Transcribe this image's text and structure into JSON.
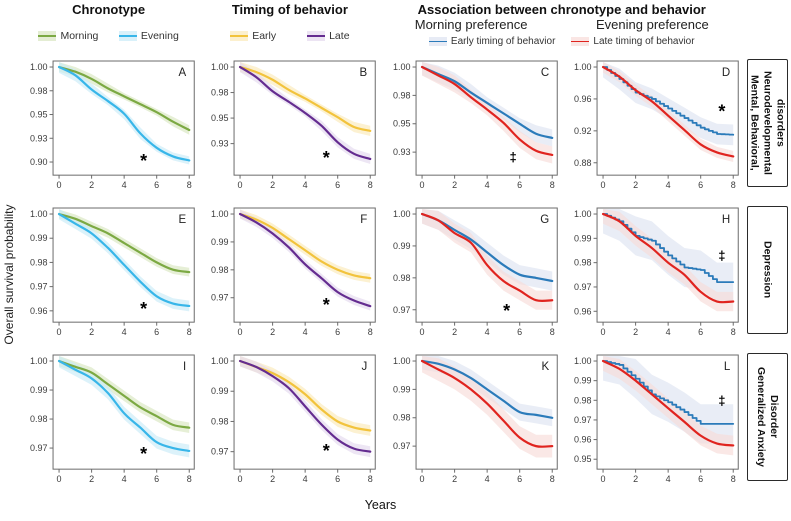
{
  "figure": {
    "ylabel": "Overall survival probability",
    "xlabel": "Years"
  },
  "header": {
    "chronotype": {
      "title": "Chronotype",
      "legend": [
        {
          "label": "Morning",
          "color": "#7ca943",
          "fill": "#d9e6c0"
        },
        {
          "label": "Evening",
          "color": "#38b6e9",
          "fill": "#c9ebf8"
        }
      ]
    },
    "timing": {
      "title": "Timing of behavior",
      "legend": [
        {
          "label": "Early",
          "color": "#f2c33c",
          "fill": "#fbeab9"
        },
        {
          "label": "Late",
          "color": "#642c90",
          "fill": "#e4d8ee"
        }
      ]
    },
    "association": {
      "title": "Association between chronotype  and behavior",
      "subcolumns": [
        {
          "label": "Morning preference"
        },
        {
          "label": "Evening preference"
        }
      ],
      "legend": [
        {
          "label": "Early timing of behavior",
          "color": "#2b7bba",
          "fill": "#dde3f1"
        },
        {
          "label": "Late timing of behavior",
          "color": "#e0241f",
          "fill": "#f8dbd8"
        }
      ]
    }
  },
  "rows": [
    {
      "label_text": "Mental, Behavioral,\nNeurodevelopmental\ndisorders"
    },
    {
      "label_text": "Depression"
    },
    {
      "label_text": "Generalized Anxiety\nDisorder"
    }
  ],
  "chart_data": [
    {
      "id": "A",
      "type": "line",
      "column": "Chronotype",
      "outcome": "Mental, Behavioral, Neurodevelopmental disorders",
      "x": [
        0,
        1,
        2,
        3,
        4,
        5,
        6,
        7,
        8
      ],
      "xticks": [
        0,
        2,
        4,
        6,
        8
      ],
      "yticks": [
        1.0,
        0.98,
        0.95,
        0.93,
        0.9
      ],
      "series": [
        {
          "name": "Morning",
          "color": "#7ca943",
          "fill": "#d9e6c0",
          "band": 0.004,
          "step": false,
          "values": [
            1.0,
            0.996,
            0.99,
            0.982,
            0.973,
            0.963,
            0.953,
            0.944,
            0.937
          ]
        },
        {
          "name": "Evening",
          "color": "#38b6e9",
          "fill": "#c9ebf8",
          "band": 0.005,
          "step": false,
          "values": [
            1.0,
            0.993,
            0.981,
            0.967,
            0.951,
            0.934,
            0.918,
            0.907,
            0.902
          ]
        }
      ],
      "significance": {
        "symbol": "*",
        "x": 5.2,
        "y": 0.905
      }
    },
    {
      "id": "B",
      "type": "line",
      "column": "Timing of behavior",
      "outcome": "Mental, Behavioral, Neurodevelopmental disorders",
      "x": [
        0,
        1,
        2,
        3,
        4,
        5,
        6,
        7,
        8
      ],
      "xticks": [
        0,
        2,
        4,
        6,
        8
      ],
      "yticks": [
        1.0,
        0.98,
        0.95,
        0.93
      ],
      "series": [
        {
          "name": "Early",
          "color": "#f2c33c",
          "fill": "#fbeab9",
          "band": 0.004,
          "step": false,
          "values": [
            1.0,
            0.996,
            0.99,
            0.982,
            0.973,
            0.962,
            0.951,
            0.943,
            0.94
          ]
        },
        {
          "name": "Late",
          "color": "#642c90",
          "fill": "#e4d8ee",
          "band": 0.004,
          "step": false,
          "values": [
            1.0,
            0.992,
            0.981,
            0.969,
            0.956,
            0.944,
            0.931,
            0.922,
            0.918
          ]
        }
      ],
      "significance": {
        "symbol": "*",
        "x": 5.3,
        "y": 0.921
      }
    },
    {
      "id": "C",
      "type": "line",
      "column": "Morning preference",
      "outcome": "Mental, Behavioral, Neurodevelopmental disorders",
      "x": [
        0,
        1,
        2,
        3,
        4,
        5,
        6,
        7,
        8
      ],
      "xticks": [
        0,
        2,
        4,
        6,
        8
      ],
      "yticks": [
        1.0,
        0.98,
        0.95,
        0.93
      ],
      "series": [
        {
          "name": "Early timing of behavior",
          "color": "#2b7bba",
          "fill": "#dde3f1",
          "band": 0.006,
          "step": false,
          "values": [
            1.0,
            0.995,
            0.99,
            0.982,
            0.972,
            0.961,
            0.95,
            0.943,
            0.94
          ]
        },
        {
          "name": "Late timing of behavior",
          "color": "#e0241f",
          "fill": "#f8dbd8",
          "band": 0.006,
          "step": false,
          "values": [
            1.0,
            0.994,
            0.988,
            0.978,
            0.965,
            0.951,
            0.939,
            0.931,
            0.928
          ]
        }
      ],
      "significance": {
        "symbol": "‡",
        "x": 5.6,
        "y": 0.9265
      }
    },
    {
      "id": "D",
      "type": "line",
      "column": "Evening preference",
      "outcome": "Mental, Behavioral, Neurodevelopmental disorders",
      "x": [
        0,
        1,
        2,
        3,
        4,
        5,
        6,
        7,
        8
      ],
      "xticks": [
        0,
        2,
        4,
        6,
        8
      ],
      "yticks": [
        1.0,
        0.96,
        0.92,
        0.88
      ],
      "series": [
        {
          "name": "Early timing of behavior",
          "color": "#2b7bba",
          "fill": "#dde3f1",
          "band": 0.013,
          "step": true,
          "values": [
            1.0,
            0.985,
            0.968,
            0.96,
            0.948,
            0.936,
            0.924,
            0.916,
            0.915
          ]
        },
        {
          "name": "Late timing of behavior",
          "color": "#e0241f",
          "fill": "#f8dbd8",
          "band": 0.007,
          "step": false,
          "values": [
            1.0,
            0.988,
            0.971,
            0.957,
            0.939,
            0.921,
            0.903,
            0.893,
            0.888
          ]
        }
      ],
      "significance": {
        "symbol": "*",
        "x": 7.3,
        "y": 0.948
      }
    },
    {
      "id": "E",
      "type": "line",
      "column": "Chronotype",
      "outcome": "Depression",
      "x": [
        0,
        1,
        2,
        3,
        4,
        5,
        6,
        7,
        8
      ],
      "xticks": [
        0,
        2,
        4,
        6,
        8
      ],
      "yticks": [
        1.0,
        0.99,
        0.98,
        0.97,
        0.96
      ],
      "series": [
        {
          "name": "Morning",
          "color": "#7ca943",
          "fill": "#d9e6c0",
          "band": 0.0018,
          "step": false,
          "values": [
            1.0,
            0.998,
            0.995,
            0.992,
            0.988,
            0.984,
            0.98,
            0.977,
            0.976
          ]
        },
        {
          "name": "Evening",
          "color": "#38b6e9",
          "fill": "#c9ebf8",
          "band": 0.0022,
          "step": false,
          "values": [
            1.0,
            0.996,
            0.992,
            0.986,
            0.979,
            0.972,
            0.966,
            0.963,
            0.962
          ]
        }
      ],
      "significance": {
        "symbol": "*",
        "x": 5.2,
        "y": 0.962
      }
    },
    {
      "id": "F",
      "type": "line",
      "column": "Timing of behavior",
      "outcome": "Depression",
      "x": [
        0,
        1,
        2,
        3,
        4,
        5,
        6,
        7,
        8
      ],
      "xticks": [
        0,
        2,
        4,
        6,
        8
      ],
      "yticks": [
        1.0,
        0.99,
        0.98,
        0.97
      ],
      "series": [
        {
          "name": "Early",
          "color": "#f2c33c",
          "fill": "#fbeab9",
          "band": 0.0016,
          "step": false,
          "values": [
            1.0,
            0.998,
            0.995,
            0.991,
            0.987,
            0.983,
            0.98,
            0.978,
            0.977
          ]
        },
        {
          "name": "Late",
          "color": "#642c90",
          "fill": "#e4d8ee",
          "band": 0.0016,
          "step": false,
          "values": [
            1.0,
            0.997,
            0.993,
            0.988,
            0.982,
            0.977,
            0.972,
            0.969,
            0.967
          ]
        }
      ],
      "significance": {
        "symbol": "*",
        "x": 5.3,
        "y": 0.9685
      }
    },
    {
      "id": "G",
      "type": "line",
      "column": "Morning preference",
      "outcome": "Depression",
      "x": [
        0,
        1,
        2,
        3,
        4,
        5,
        6,
        7,
        8
      ],
      "xticks": [
        0,
        2,
        4,
        6,
        8
      ],
      "yticks": [
        1.0,
        0.99,
        0.98,
        0.97
      ],
      "series": [
        {
          "name": "Early timing of behavior",
          "color": "#2b7bba",
          "fill": "#dde3f1",
          "band": 0.003,
          "step": false,
          "values": [
            1.0,
            0.998,
            0.995,
            0.992,
            0.988,
            0.984,
            0.981,
            0.98,
            0.979
          ]
        },
        {
          "name": "Late timing of behavior",
          "color": "#e0241f",
          "fill": "#f8dbd8",
          "band": 0.003,
          "step": false,
          "values": [
            1.0,
            0.998,
            0.994,
            0.991,
            0.984,
            0.979,
            0.976,
            0.973,
            0.973
          ]
        }
      ],
      "significance": {
        "symbol": "*",
        "x": 5.2,
        "y": 0.9705
      }
    },
    {
      "id": "H",
      "type": "line",
      "column": "Evening preference",
      "outcome": "Depression",
      "x": [
        0,
        1,
        2,
        3,
        4,
        5,
        6,
        7,
        8
      ],
      "xticks": [
        0,
        2,
        4,
        6,
        8
      ],
      "yticks": [
        1.0,
        0.99,
        0.98,
        0.97,
        0.96
      ],
      "series": [
        {
          "name": "Early timing of behavior",
          "color": "#2b7bba",
          "fill": "#dde3f1",
          "band": 0.008,
          "step": true,
          "values": [
            1.0,
            0.997,
            0.991,
            0.989,
            0.983,
            0.978,
            0.977,
            0.972,
            0.972
          ]
        },
        {
          "name": "Late timing of behavior",
          "color": "#e0241f",
          "fill": "#f8dbd8",
          "band": 0.004,
          "step": false,
          "values": [
            1.0,
            0.997,
            0.991,
            0.986,
            0.98,
            0.975,
            0.968,
            0.964,
            0.964
          ]
        }
      ],
      "significance": {
        "symbol": "‡",
        "x": 7.3,
        "y": 0.983
      }
    },
    {
      "id": "I",
      "type": "line",
      "column": "Chronotype",
      "outcome": "Generalized Anxiety Disorder",
      "x": [
        0,
        1,
        2,
        3,
        4,
        5,
        6,
        7,
        8
      ],
      "xticks": [
        0,
        2,
        4,
        6,
        8
      ],
      "yticks": [
        1.0,
        0.99,
        0.98,
        0.97
      ],
      "series": [
        {
          "name": "Morning",
          "color": "#7ca943",
          "fill": "#d9e6c0",
          "band": 0.0018,
          "step": false,
          "values": [
            1.0,
            0.998,
            0.996,
            0.992,
            0.988,
            0.984,
            0.981,
            0.978,
            0.977
          ]
        },
        {
          "name": "Evening",
          "color": "#38b6e9",
          "fill": "#c9ebf8",
          "band": 0.0022,
          "step": false,
          "values": [
            1.0,
            0.997,
            0.994,
            0.989,
            0.982,
            0.977,
            0.972,
            0.97,
            0.969
          ]
        }
      ],
      "significance": {
        "symbol": "*",
        "x": 5.2,
        "y": 0.969
      }
    },
    {
      "id": "J",
      "type": "line",
      "column": "Timing of behavior",
      "outcome": "Generalized Anxiety Disorder",
      "x": [
        0,
        1,
        2,
        3,
        4,
        5,
        6,
        7,
        8
      ],
      "xticks": [
        0,
        2,
        4,
        6,
        8
      ],
      "yticks": [
        1.0,
        0.99,
        0.98,
        0.97
      ],
      "series": [
        {
          "name": "Early",
          "color": "#f2c33c",
          "fill": "#fbeab9",
          "band": 0.0018,
          "step": false,
          "values": [
            1.0,
            0.998,
            0.996,
            0.993,
            0.989,
            0.984,
            0.98,
            0.978,
            0.977
          ]
        },
        {
          "name": "Late",
          "color": "#642c90",
          "fill": "#e4d8ee",
          "band": 0.0018,
          "step": false,
          "values": [
            1.0,
            0.998,
            0.995,
            0.991,
            0.985,
            0.979,
            0.974,
            0.971,
            0.97
          ]
        }
      ],
      "significance": {
        "symbol": "*",
        "x": 5.3,
        "y": 0.9712
      }
    },
    {
      "id": "K",
      "type": "line",
      "column": "Morning preference",
      "outcome": "Generalized Anxiety Disorder",
      "x": [
        0,
        1,
        2,
        3,
        4,
        5,
        6,
        7,
        8
      ],
      "xticks": [
        0,
        2,
        4,
        6,
        8
      ],
      "yticks": [
        1.0,
        0.99,
        0.98,
        0.97
      ],
      "series": [
        {
          "name": "Early timing of behavior",
          "color": "#2b7bba",
          "fill": "#dde3f1",
          "band": 0.003,
          "step": false,
          "values": [
            1.0,
            0.999,
            0.997,
            0.994,
            0.99,
            0.986,
            0.982,
            0.981,
            0.98
          ]
        },
        {
          "name": "Late timing of behavior",
          "color": "#e0241f",
          "fill": "#f8dbd8",
          "band": 0.004,
          "step": false,
          "values": [
            1.0,
            0.997,
            0.994,
            0.99,
            0.985,
            0.979,
            0.973,
            0.97,
            0.97
          ]
        }
      ],
      "significance": null
    },
    {
      "id": "L",
      "type": "line",
      "column": "Evening preference",
      "outcome": "Generalized Anxiety Disorder",
      "x": [
        0,
        1,
        2,
        3,
        4,
        5,
        6,
        7,
        8
      ],
      "xticks": [
        0,
        2,
        4,
        6,
        8
      ],
      "yticks": [
        1.0,
        0.99,
        0.98,
        0.97,
        0.96,
        0.95
      ],
      "series": [
        {
          "name": "Early timing of behavior",
          "color": "#2b7bba",
          "fill": "#dde3f1",
          "band": 0.01,
          "step": true,
          "values": [
            1.0,
            0.998,
            0.991,
            0.983,
            0.979,
            0.974,
            0.968,
            0.968,
            0.968
          ]
        },
        {
          "name": "Late timing of behavior",
          "color": "#e0241f",
          "fill": "#f8dbd8",
          "band": 0.005,
          "step": false,
          "values": [
            1.0,
            0.996,
            0.99,
            0.983,
            0.976,
            0.969,
            0.962,
            0.958,
            0.957
          ]
        }
      ],
      "significance": {
        "symbol": "‡",
        "x": 7.3,
        "y": 0.98
      }
    }
  ]
}
